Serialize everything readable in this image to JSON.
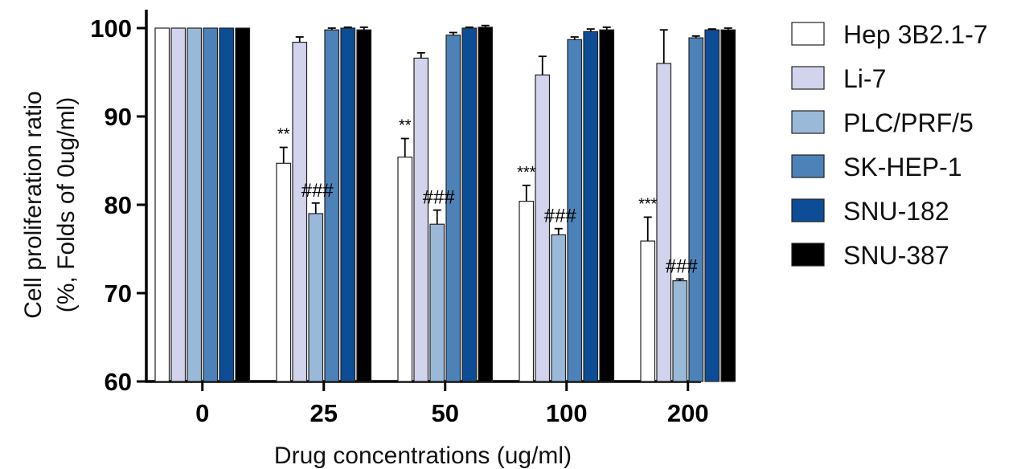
{
  "chart_data": {
    "type": "bar",
    "xlabel": "Drug concentrations (ug/ml)",
    "ylabel_lines": [
      "Cell proliferation ratio",
      "(%, Folds of 0ug/ml)"
    ],
    "ylim": [
      60,
      100
    ],
    "yticks": [
      60,
      70,
      80,
      90,
      100
    ],
    "grid": false,
    "legend_position": "right",
    "categories": [
      "0",
      "25",
      "50",
      "100",
      "200"
    ],
    "series": [
      {
        "name": "Hep 3B2.1-7",
        "color": "#ffffff",
        "values": [
          100,
          84.7,
          85.4,
          80.4,
          75.9
        ],
        "errors": [
          0,
          1.8,
          2.1,
          1.8,
          2.7
        ]
      },
      {
        "name": "Li-7",
        "color": "#d2d3ec",
        "values": [
          100,
          98.4,
          96.6,
          94.7,
          96.0
        ],
        "errors": [
          0,
          0.6,
          0.6,
          2.1,
          3.8
        ]
      },
      {
        "name": "PLC/PRF/5",
        "color": "#9ab9d9",
        "values": [
          100,
          79.0,
          77.8,
          76.6,
          71.4
        ],
        "errors": [
          0,
          1.2,
          1.6,
          0.7,
          0.2
        ]
      },
      {
        "name": "SK-HEP-1",
        "color": "#4c82b8",
        "values": [
          100,
          99.8,
          99.2,
          98.7,
          98.9
        ],
        "errors": [
          0,
          0.2,
          0.3,
          0.3,
          0.2
        ]
      },
      {
        "name": "SNU-182",
        "color": "#0d4d95",
        "values": [
          100,
          100.0,
          100.0,
          99.6,
          99.8
        ],
        "errors": [
          0,
          0.1,
          0.1,
          0.3,
          0.1
        ]
      },
      {
        "name": "SNU-387",
        "color": "#000000",
        "values": [
          100,
          99.8,
          100.1,
          99.8,
          99.8
        ],
        "errors": [
          0,
          0.3,
          0.2,
          0.3,
          0.2
        ]
      }
    ],
    "annotations": [
      {
        "category": "25",
        "series": "Hep 3B2.1-7",
        "text": "**"
      },
      {
        "category": "50",
        "series": "Hep 3B2.1-7",
        "text": "**"
      },
      {
        "category": "100",
        "series": "Hep 3B2.1-7",
        "text": "***"
      },
      {
        "category": "200",
        "series": "Hep 3B2.1-7",
        "text": "***"
      },
      {
        "category": "25",
        "series": "PLC/PRF/5",
        "text": "###"
      },
      {
        "category": "50",
        "series": "PLC/PRF/5",
        "text": "###"
      },
      {
        "category": "100",
        "series": "PLC/PRF/5",
        "text": "###"
      },
      {
        "category": "200",
        "series": "PLC/PRF/5",
        "text": "###"
      }
    ]
  }
}
